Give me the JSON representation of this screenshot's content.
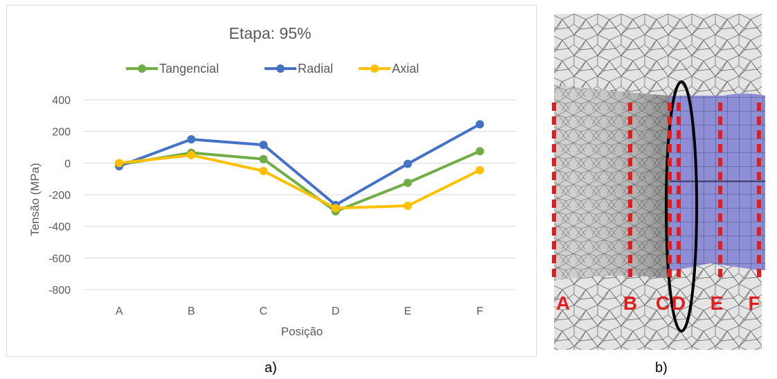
{
  "chart_data": {
    "type": "line",
    "title": "Etapa: 95%",
    "xlabel": "Posição",
    "ylabel": "Tensão (MPa)",
    "categories": [
      "A",
      "B",
      "C",
      "D",
      "E",
      "F"
    ],
    "ylim": [
      -800,
      400
    ],
    "yticks": [
      400,
      200,
      0,
      -200,
      -400,
      -600,
      -800
    ],
    "grid": true,
    "legend_position": "top",
    "series": [
      {
        "name": "Tangencial",
        "color": "#70ad47",
        "values": [
          -10,
          65,
          25,
          -305,
          -125,
          75
        ]
      },
      {
        "name": "Radial",
        "color": "#4472c4",
        "values": [
          -20,
          150,
          115,
          -265,
          -5,
          245
        ]
      },
      {
        "name": "Axial",
        "color": "#ffc000",
        "values": [
          0,
          50,
          -50,
          -285,
          -270,
          -45
        ]
      }
    ]
  },
  "mesh": {
    "section_labels": [
      "A",
      "B",
      "C",
      "D",
      "E",
      "F"
    ],
    "label_color": "#e11d1d",
    "steel_color": "#d3d3d3",
    "tube_color": "#8e8ed6"
  },
  "captions": {
    "left": "a)",
    "right": "b)"
  }
}
